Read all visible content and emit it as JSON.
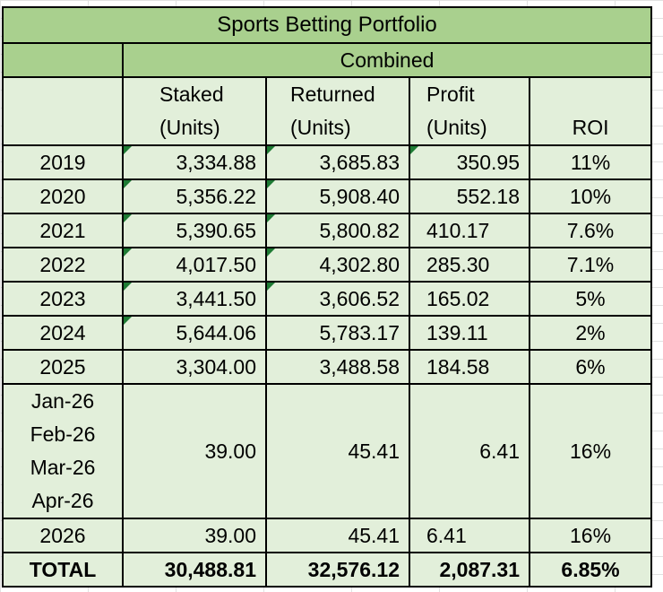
{
  "title": "Sports Betting Portfolio",
  "subheader": "Combined",
  "headers": {
    "staked": [
      "Staked",
      "(Units)"
    ],
    "returned": [
      "Returned",
      "(Units)"
    ],
    "profit": [
      "Profit",
      "(Units)"
    ],
    "roi": "ROI"
  },
  "rows": [
    {
      "year": "2019",
      "staked": "3,334.88",
      "returned": "3,685.83",
      "profit": "350.95",
      "roi": "11%"
    },
    {
      "year": "2020",
      "staked": "5,356.22",
      "returned": "5,908.40",
      "profit": "552.18",
      "roi": "10%"
    },
    {
      "year": "2021",
      "staked": "5,390.65",
      "returned": "5,800.82",
      "profit": "410.17",
      "roi": "7.6%"
    },
    {
      "year": "2022",
      "staked": "4,017.50",
      "returned": "4,302.80",
      "profit": "285.30",
      "roi": "7.1%"
    },
    {
      "year": "2023",
      "staked": "3,441.50",
      "returned": "3,606.52",
      "profit": "165.02",
      "roi": "5%"
    },
    {
      "year": "2024",
      "staked": "5,644.06",
      "returned": "5,783.17",
      "profit": "139.11",
      "roi": "2%"
    },
    {
      "year": "2025",
      "staked": "3,304.00",
      "returned": "3,488.58",
      "profit": "184.58",
      "roi": "6%"
    }
  ],
  "monthly": {
    "months": [
      "Jan-26",
      "Feb-26",
      "Mar-26",
      "Apr-26"
    ],
    "staked": "39.00",
    "returned": "45.41",
    "profit": "6.41",
    "roi": "16%"
  },
  "ytd": {
    "year": "2026",
    "staked": "39.00",
    "returned": "45.41",
    "profit": "6.41",
    "roi": "16%"
  },
  "total": {
    "label": "TOTAL",
    "staked": "30,488.81",
    "returned": "32,576.12",
    "profit": "2,087.31",
    "roi": "6.85%"
  },
  "colors": {
    "header_green": "#a9d08e",
    "body_green": "#e2efda",
    "error_indicator": "#1e7b34"
  }
}
